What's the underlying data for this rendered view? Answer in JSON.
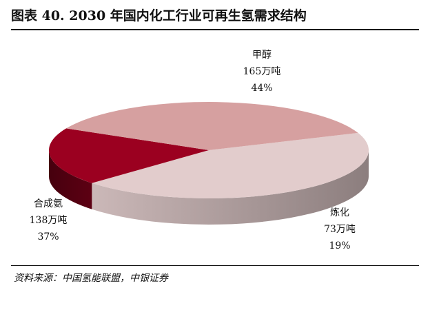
{
  "figure": {
    "title": "图表 40. 2030 年国内化工行业可再生氢需求结构",
    "source": "资料来源：中国氢能联盟，中银证券"
  },
  "chart_data": {
    "type": "pie",
    "unit": "万吨",
    "slices": [
      {
        "name": "甲醇",
        "value": 165,
        "value_label": "165万吨",
        "pct_label": "44%",
        "color": "#e2cccc"
      },
      {
        "name": "炼化",
        "value": 73,
        "value_label": "73万吨",
        "pct_label": "19%",
        "color": "#9b0020"
      },
      {
        "name": "合成氨",
        "value": 138,
        "value_label": "138万吨",
        "pct_label": "37%",
        "color": "#d6a0a0"
      }
    ]
  }
}
